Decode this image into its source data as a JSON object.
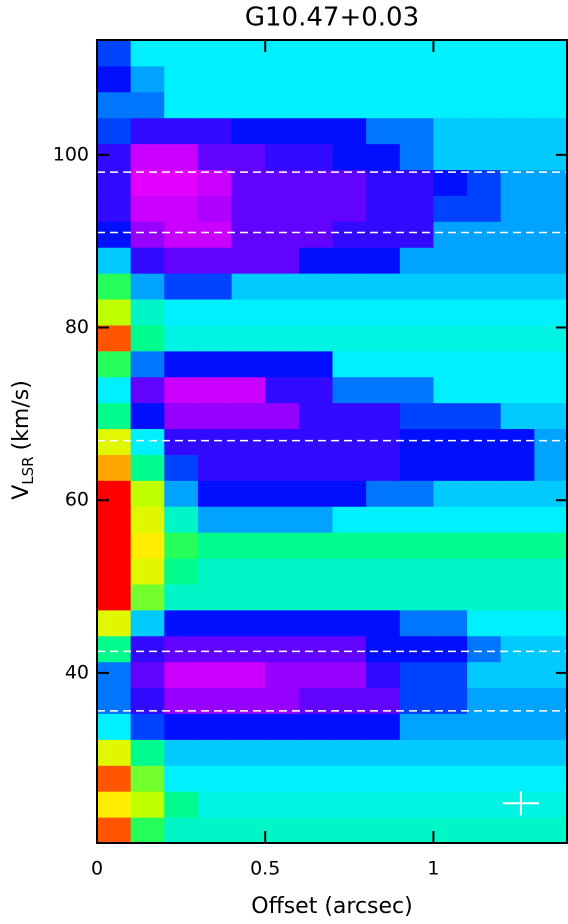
{
  "chart_data": {
    "type": "heatmap",
    "title": "G10.47+0.03",
    "xlabel": "Offset (arcsec)",
    "ylabel": {
      "text": "V",
      "sub": "LSR",
      "unit": "(km/s)"
    },
    "xlim": [
      0,
      1.4
    ],
    "ylim": [
      20.3,
      113.3
    ],
    "xticks": [
      0,
      0.5,
      1
    ],
    "yticks": [
      40,
      60,
      80,
      100
    ],
    "x_edges": [
      0,
      0.1,
      0.2,
      0.3,
      0.4,
      0.5,
      0.6,
      0.7,
      0.8,
      0.9,
      1.0,
      1.1,
      1.2,
      1.3,
      1.4
    ],
    "y_edges": [
      20.3,
      23.3,
      26.3,
      29.3,
      32.3,
      35.3,
      38.3,
      41.3,
      44.3,
      47.3,
      50.3,
      53.3,
      56.3,
      59.3,
      62.3,
      65.3,
      68.3,
      71.3,
      74.3,
      77.3,
      80.3,
      83.3,
      86.3,
      89.3,
      92.3,
      95.3,
      98.3,
      101.3,
      104.3,
      107.3,
      110.3,
      113.3
    ],
    "z": [
      [
        0.9,
        0.3,
        0.1,
        0.1,
        0.1,
        0.1,
        0.1,
        0.1,
        0.1,
        0.1,
        0.1,
        0.1,
        0.1,
        0.1
      ],
      [
        0.7,
        0.5,
        0.2,
        0.05,
        0.05,
        0.05,
        0.05,
        0.05,
        0.05,
        0.05,
        0.05,
        0.05,
        0.05,
        0.05
      ],
      [
        0.9,
        0.4,
        0,
        0,
        0,
        0,
        0,
        0,
        0,
        0,
        0,
        0,
        0,
        0
      ],
      [
        0.6,
        0.2,
        -0.1,
        -0.1,
        -0.1,
        -0.1,
        -0.1,
        -0.1,
        -0.1,
        -0.1,
        -0.1,
        -0.1,
        -0.1,
        -0.1
      ],
      [
        0,
        -0.4,
        -0.5,
        -0.5,
        -0.5,
        -0.5,
        -0.5,
        -0.5,
        -0.5,
        -0.2,
        -0.2,
        -0.2,
        -0.2,
        -0.2
      ],
      [
        -0.3,
        -0.6,
        -0.8,
        -0.8,
        -0.8,
        -0.8,
        -0.7,
        -0.7,
        -0.7,
        -0.4,
        -0.4,
        -0.2,
        -0.2,
        -0.2
      ],
      [
        -0.3,
        -0.7,
        -0.9,
        -0.9,
        -0.9,
        -0.8,
        -0.8,
        -0.8,
        -0.6,
        -0.4,
        -0.4,
        -0.1,
        -0.1,
        -0.1
      ],
      [
        0.2,
        -0.6,
        -0.7,
        -0.7,
        -0.7,
        -0.7,
        -0.7,
        -0.7,
        -0.5,
        -0.5,
        -0.5,
        -0.3,
        -0.1,
        -0.1
      ],
      [
        0.6,
        -0.1,
        -0.5,
        -0.5,
        -0.5,
        -0.5,
        -0.5,
        -0.5,
        -0.5,
        -0.3,
        -0.3,
        0,
        0,
        0
      ],
      [
        1,
        0.4,
        0.1,
        0.1,
        0.1,
        0.1,
        0.1,
        0.1,
        0.1,
        0.1,
        0.1,
        0.1,
        0.1,
        0.1
      ],
      [
        1,
        0.6,
        0.2,
        0.1,
        0.1,
        0.1,
        0.1,
        0.1,
        0.1,
        0.1,
        0.1,
        0.1,
        0.1,
        0.1
      ],
      [
        1,
        0.7,
        0.3,
        0.2,
        0.2,
        0.2,
        0.2,
        0.2,
        0.2,
        0.2,
        0.2,
        0.2,
        0.2,
        0.2
      ],
      [
        1,
        0.6,
        0.1,
        -0.2,
        -0.2,
        -0.2,
        -0.2,
        0,
        0,
        0,
        0,
        0,
        0,
        0
      ],
      [
        1,
        0.5,
        -0.2,
        -0.5,
        -0.5,
        -0.5,
        -0.5,
        -0.5,
        -0.3,
        -0.3,
        -0.1,
        -0.1,
        -0.1,
        -0.1
      ],
      [
        0.8,
        0.2,
        -0.4,
        -0.6,
        -0.6,
        -0.6,
        -0.6,
        -0.6,
        -0.6,
        -0.5,
        -0.5,
        -0.5,
        -0.5,
        -0.2
      ],
      [
        0.6,
        0,
        -0.6,
        -0.6,
        -0.6,
        -0.6,
        -0.6,
        -0.6,
        -0.6,
        -0.5,
        -0.5,
        -0.5,
        -0.5,
        -0.2
      ],
      [
        0.2,
        -0.5,
        -0.8,
        -0.8,
        -0.8,
        -0.8,
        -0.6,
        -0.6,
        -0.6,
        -0.4,
        -0.4,
        -0.4,
        -0.1,
        -0.1
      ],
      [
        0,
        -0.7,
        -0.9,
        -0.9,
        -0.9,
        -0.6,
        -0.6,
        -0.3,
        -0.3,
        -0.3,
        0,
        0,
        0,
        0
      ],
      [
        0.3,
        -0.3,
        -0.5,
        -0.5,
        -0.5,
        -0.5,
        -0.5,
        0,
        0,
        0,
        0,
        0,
        0,
        0
      ],
      [
        0.9,
        0.2,
        0.05,
        0.05,
        0.05,
        0.05,
        0.05,
        0.05,
        0.05,
        0.05,
        0.05,
        0.05,
        0.05,
        0.05
      ],
      [
        0.5,
        0.1,
        0,
        0,
        0,
        0,
        0,
        0,
        0,
        0,
        0,
        0,
        0,
        0
      ],
      [
        0.3,
        -0.2,
        -0.4,
        -0.4,
        -0.1,
        -0.1,
        -0.1,
        -0.1,
        -0.1,
        -0.1,
        -0.1,
        -0.1,
        -0.1,
        -0.1
      ],
      [
        -0.1,
        -0.6,
        -0.7,
        -0.7,
        -0.7,
        -0.7,
        -0.5,
        -0.5,
        -0.5,
        -0.2,
        -0.2,
        -0.2,
        -0.2,
        -0.2
      ],
      [
        -0.5,
        -0.8,
        -0.9,
        -0.9,
        -0.7,
        -0.7,
        -0.7,
        -0.6,
        -0.6,
        -0.6,
        -0.2,
        -0.2,
        -0.2,
        -0.2
      ],
      [
        -0.6,
        -0.9,
        -0.9,
        -0.85,
        -0.7,
        -0.7,
        -0.7,
        -0.7,
        -0.6,
        -0.6,
        -0.4,
        -0.4,
        -0.2,
        -0.2
      ],
      [
        -0.6,
        -0.95,
        -0.95,
        -0.9,
        -0.7,
        -0.7,
        -0.7,
        -0.7,
        -0.6,
        -0.6,
        -0.5,
        -0.4,
        -0.2,
        -0.2
      ],
      [
        -0.6,
        -0.9,
        -0.9,
        -0.7,
        -0.7,
        -0.6,
        -0.6,
        -0.5,
        -0.5,
        -0.3,
        -0.1,
        -0.1,
        -0.1,
        -0.1
      ],
      [
        -0.4,
        -0.6,
        -0.6,
        -0.6,
        -0.5,
        -0.5,
        -0.5,
        -0.5,
        -0.3,
        -0.3,
        -0.1,
        -0.1,
        -0.1,
        -0.1
      ],
      [
        -0.3,
        -0.3,
        0,
        0,
        0,
        0,
        0,
        0,
        0,
        0,
        0,
        0,
        0,
        0
      ],
      [
        -0.5,
        -0.2,
        0,
        0,
        0,
        0,
        0,
        0,
        0,
        0,
        0,
        0,
        0,
        0
      ],
      [
        -0.4,
        0,
        0,
        0,
        0,
        0,
        0,
        0,
        0,
        0,
        0,
        0,
        0,
        0
      ]
    ],
    "colormap": [
      [
        -1,
        "#ff00ff"
      ],
      [
        -0.75,
        "#7a00ff"
      ],
      [
        -0.5,
        "#0010ff"
      ],
      [
        -0.25,
        "#0090ff"
      ],
      [
        0,
        "#00f0ff"
      ],
      [
        0.25,
        "#00ff70"
      ],
      [
        0.5,
        "#c0ff00"
      ],
      [
        0.7,
        "#ffee00"
      ],
      [
        0.85,
        "#ff8000"
      ],
      [
        1,
        "#ff0000"
      ]
    ],
    "reference_lines": [
      98.0,
      91.0,
      66.9,
      42.5,
      35.6
    ],
    "reference_color": "#ffffff",
    "error_bar": {
      "x": 1.26,
      "y": 24.9,
      "xerr": 0.054,
      "yerr": 1.4,
      "color": "#ffffff"
    }
  }
}
